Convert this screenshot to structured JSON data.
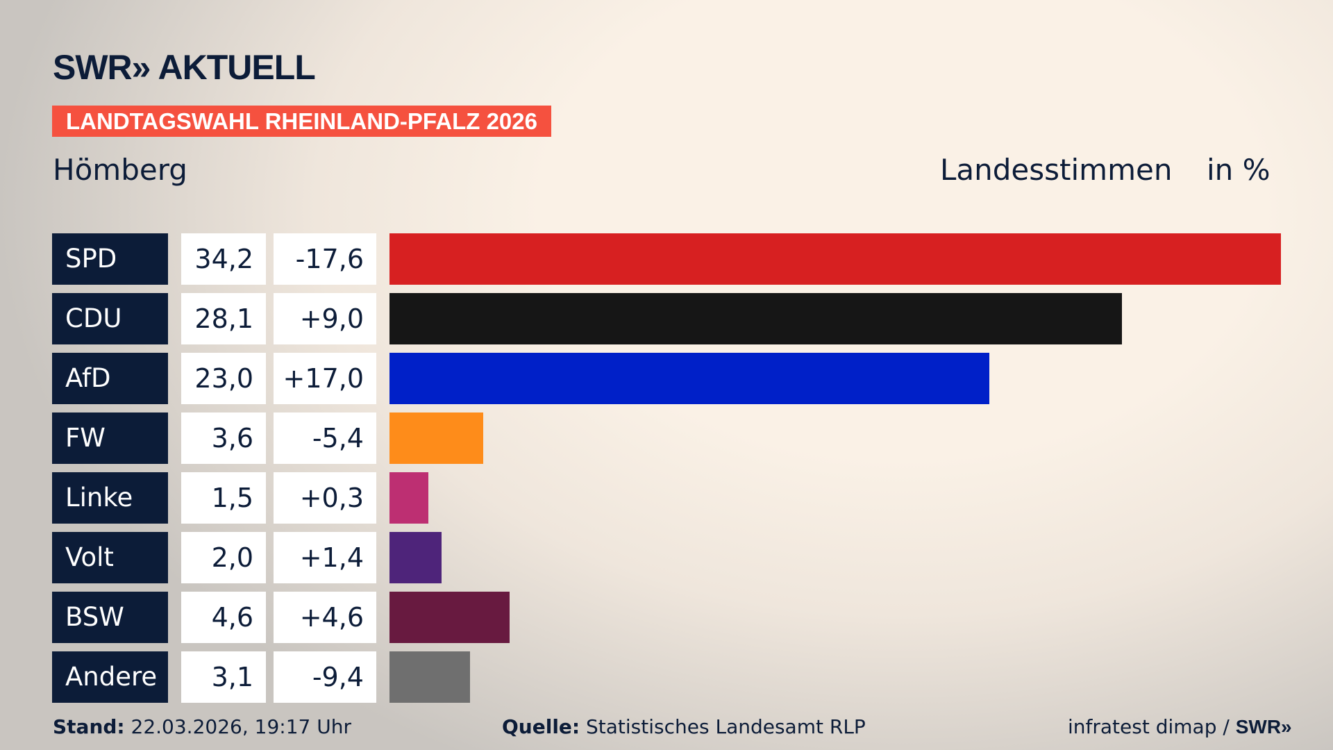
{
  "header": {
    "logo": "SWR» AKTUELL",
    "banner": "LANDTAGSWAHL RHEINLAND-PFALZ 2026",
    "place": "Hömberg",
    "metric": "Landesstimmen",
    "unit": "in %"
  },
  "chart_data": {
    "type": "bar",
    "orientation": "horizontal",
    "xlim": [
      0,
      34.2
    ],
    "categories": [
      "SPD",
      "CDU",
      "AfD",
      "FW",
      "Linke",
      "Volt",
      "BSW",
      "Andere"
    ],
    "values": [
      34.2,
      28.1,
      23.0,
      3.6,
      1.5,
      2.0,
      4.6,
      3.1
    ],
    "value_labels": [
      "34,2",
      "28,1",
      "23,0",
      "3,6",
      "1,5",
      "2,0",
      "4,6",
      "3,1"
    ],
    "diff_labels": [
      "-17,6",
      "+9,0",
      "+17,0",
      "-5,4",
      "+0,3",
      "+1,4",
      "+4,6",
      "-9,4"
    ],
    "diffs": [
      -17.6,
      9.0,
      17.0,
      -5.4,
      0.3,
      1.4,
      4.6,
      -9.4
    ],
    "colors": [
      "#d72021",
      "#161616",
      "#0020c8",
      "#fe8c1a",
      "#bd2f72",
      "#4e247a",
      "#681a40",
      "#6f6f6f"
    ]
  },
  "footer": {
    "stand_label": "Stand:",
    "stand_value": " 22.03.2026, 19:17 Uhr",
    "source_label": "Quelle:",
    "source_value": " Statistisches Landesamt RLP",
    "credit": "infratest dimap / ",
    "credit_logo": "SWR»"
  }
}
